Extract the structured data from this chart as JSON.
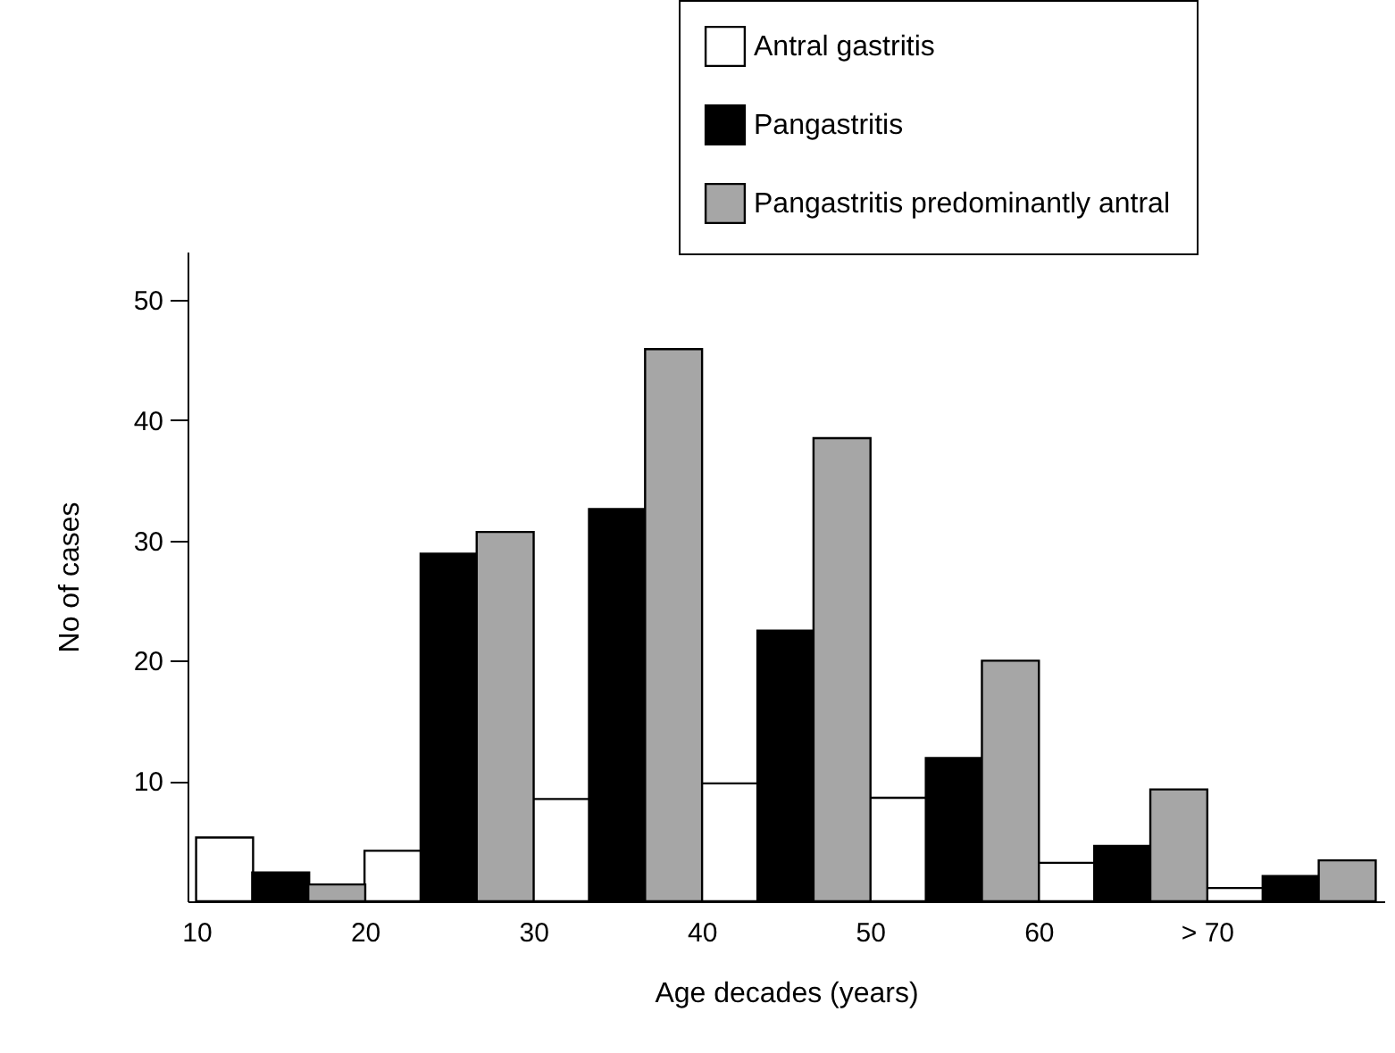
{
  "chart_data": {
    "type": "bar",
    "xlabel": "Age decades (years)",
    "ylabel": "No of cases",
    "xlim": [
      10,
      80
    ],
    "xticks": [
      10,
      20,
      30,
      40,
      50,
      60,
      {
        "value": 70,
        "label": "> 70"
      }
    ],
    "ylim": [
      0,
      54
    ],
    "yticks": [
      10,
      20,
      30,
      40,
      50
    ],
    "series": [
      {
        "name": "Antral gastritis",
        "color": "#ffffff",
        "x": [
          11.67,
          21.67,
          31.67,
          41.67,
          51.67,
          61.67,
          71.67
        ],
        "values": [
          5.3,
          4.2,
          8.5,
          9.8,
          8.6,
          3.2,
          1.1
        ]
      },
      {
        "name": "Pangastritis",
        "color": "#000000",
        "x": [
          15,
          25,
          35,
          45,
          55,
          65,
          75
        ],
        "values": [
          2.4,
          28.9,
          32.6,
          22.5,
          11.9,
          4.6,
          2.1
        ]
      },
      {
        "name": "Pangastritis predominantly antral",
        "color": "#a6a6a6",
        "x": [
          18.33,
          28.33,
          38.33,
          48.33,
          58.33,
          68.33,
          78.33
        ],
        "values": [
          1.4,
          30.7,
          45.9,
          38.5,
          20.0,
          9.3,
          3.4
        ]
      }
    ],
    "grid": false,
    "legend": "top right"
  }
}
